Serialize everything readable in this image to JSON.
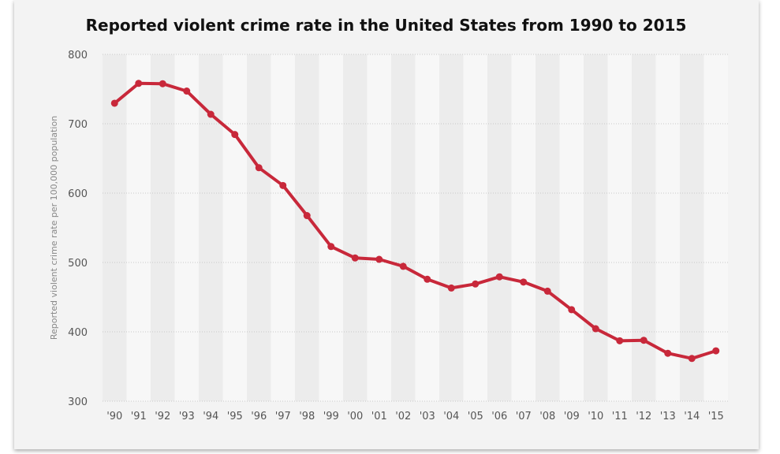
{
  "chart_data": {
    "type": "line",
    "title": "Reported violent crime rate in the United States from 1990 to 2015",
    "ylabel": "Reported violent crime rate per 100,000 population",
    "xlabel": "",
    "categories": [
      "'90",
      "'91",
      "'92",
      "'93",
      "'94",
      "'95",
      "'96",
      "'97",
      "'98",
      "'99",
      "'00",
      "'01",
      "'02",
      "'03",
      "'04",
      "'05",
      "'06",
      "'07",
      "'08",
      "'09",
      "'10",
      "'11",
      "'12",
      "'13",
      "'14",
      "'15"
    ],
    "series": [
      {
        "values": [
          729.6,
          758.2,
          757.7,
          747.1,
          713.6,
          684.5,
          636.6,
          611.0,
          567.6,
          523.0,
          506.5,
          504.5,
          494.4,
          475.8,
          463.2,
          469.0,
          479.3,
          471.8,
          458.6,
          431.9,
          404.5,
          387.1,
          387.8,
          369.1,
          361.6,
          372.6
        ],
        "color": "#c8283a"
      }
    ],
    "ylim": [
      300,
      800
    ],
    "yticks": [
      300,
      400,
      500,
      600,
      700,
      800
    ],
    "grid": true,
    "legend": "none"
  }
}
